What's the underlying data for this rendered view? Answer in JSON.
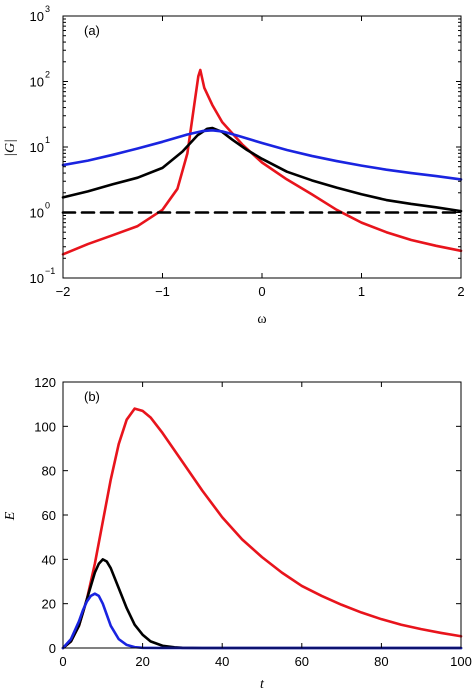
{
  "chart_data": [
    {
      "type": "line",
      "panel_label": "(a)",
      "xlabel": "ω",
      "ylabel": "|G|",
      "xlim": [
        -2,
        2
      ],
      "ylim": [
        0.1,
        1000
      ],
      "yscale": "log",
      "x_ticks": [
        "−2",
        "−1",
        "0",
        "1",
        "2"
      ],
      "y_ticks": [
        {
          "base": "10",
          "exp": "−1"
        },
        {
          "base": "10",
          "exp": "0"
        },
        {
          "base": "10",
          "exp": "1"
        },
        {
          "base": "10",
          "exp": "2"
        },
        {
          "base": "10",
          "exp": "3"
        }
      ],
      "series": [
        {
          "color": "#e8141c",
          "x": [
            -2,
            -1.75,
            -1.5,
            -1.25,
            -1.0,
            -0.85,
            -0.75,
            -0.68,
            -0.64,
            -0.62,
            -0.58,
            -0.5,
            -0.4,
            -0.2,
            0,
            0.25,
            0.5,
            0.75,
            1.0,
            1.25,
            1.5,
            1.75,
            2
          ],
          "y": [
            0.23,
            0.33,
            0.45,
            0.62,
            1.1,
            2.3,
            8,
            45,
            120,
            150,
            80,
            44,
            24,
            11,
            5.8,
            3.2,
            1.9,
            1.1,
            0.7,
            0.5,
            0.38,
            0.31,
            0.26
          ]
        },
        {
          "color": "#000000",
          "x": [
            -2,
            -1.75,
            -1.5,
            -1.25,
            -1.0,
            -0.8,
            -0.65,
            -0.55,
            -0.5,
            -0.4,
            -0.3,
            -0.15,
            0,
            0.25,
            0.5,
            0.75,
            1.0,
            1.25,
            1.5,
            1.75,
            2
          ],
          "y": [
            1.7,
            2.1,
            2.7,
            3.4,
            4.8,
            8.5,
            15,
            19,
            19.5,
            17,
            13,
            9,
            6.6,
            4.2,
            3.1,
            2.4,
            1.9,
            1.55,
            1.35,
            1.2,
            1.05
          ]
        },
        {
          "color": "#1a24e0",
          "x": [
            -2,
            -1.75,
            -1.5,
            -1.25,
            -1.0,
            -0.75,
            -0.6,
            -0.5,
            -0.4,
            -0.25,
            0,
            0.25,
            0.5,
            0.75,
            1.0,
            1.25,
            1.5,
            1.75,
            2
          ],
          "y": [
            5.3,
            6.2,
            7.6,
            9.5,
            12,
            15.5,
            17.5,
            18,
            17.3,
            15,
            11.5,
            9,
            7.3,
            6.1,
            5.2,
            4.5,
            4.0,
            3.6,
            3.2
          ]
        },
        {
          "color": "#000000",
          "dashed": true,
          "x": [
            -2,
            2
          ],
          "y": [
            1,
            1
          ]
        }
      ]
    },
    {
      "type": "line",
      "panel_label": "(b)",
      "xlabel": "t",
      "ylabel": "E",
      "xlim": [
        0,
        100
      ],
      "ylim": [
        0,
        120
      ],
      "x_ticks": [
        "0",
        "20",
        "40",
        "60",
        "80",
        "100"
      ],
      "y_ticks": [
        "0",
        "20",
        "40",
        "60",
        "80",
        "100",
        "120"
      ],
      "series": [
        {
          "color": "#e8141c",
          "x": [
            0,
            2,
            4,
            6,
            8,
            10,
            12,
            14,
            16,
            18,
            20,
            22,
            25,
            30,
            35,
            40,
            45,
            50,
            55,
            60,
            65,
            70,
            75,
            80,
            85,
            90,
            95,
            100
          ],
          "y": [
            0,
            3,
            10,
            22,
            38,
            57,
            76,
            92,
            103,
            108,
            107,
            104,
            97,
            84,
            71,
            59,
            49,
            41,
            34,
            28,
            23.5,
            19.5,
            16,
            13,
            10.5,
            8.5,
            6.8,
            5.3
          ]
        },
        {
          "color": "#000000",
          "x": [
            0,
            2,
            4,
            6,
            8,
            9,
            10,
            11,
            12,
            14,
            16,
            18,
            20,
            22,
            25,
            28,
            30,
            35,
            100
          ],
          "y": [
            0,
            3,
            10,
            22,
            34,
            38,
            40,
            39,
            36,
            27,
            18,
            10.5,
            6,
            3,
            1,
            0.3,
            0.1,
            0,
            0
          ]
        },
        {
          "color": "#1a24e0",
          "x": [
            0,
            2,
            4,
            5,
            6,
            7,
            8,
            9,
            10,
            11,
            12,
            14,
            16,
            18,
            20,
            25,
            100
          ],
          "y": [
            0,
            4,
            12,
            17,
            21,
            23.5,
            24.5,
            23.5,
            20,
            15,
            10,
            4,
            1.4,
            0.4,
            0.1,
            0,
            0
          ]
        }
      ]
    }
  ]
}
